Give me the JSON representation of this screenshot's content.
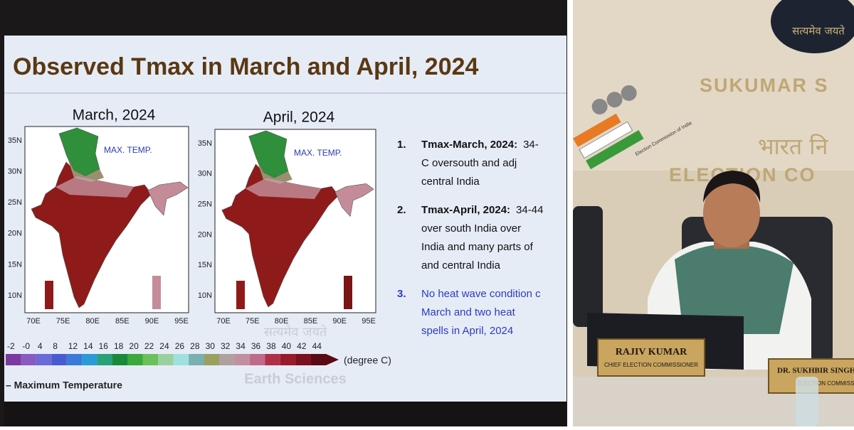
{
  "left_panel": {
    "title": "Observed Tmax in March and April, 2024",
    "maps": [
      {
        "label": "March, 2024",
        "legend": "MAX. TEMP."
      },
      {
        "label": "April, 2024",
        "legend": "MAX. TEMP."
      }
    ],
    "lat_labels": [
      "35N",
      "30N",
      "25N",
      "20N",
      "15N",
      "10N"
    ],
    "lon_labels": [
      "70E",
      "75E",
      "80E",
      "85E",
      "90E",
      "95E"
    ],
    "scale_labels": [
      "-2",
      "-0",
      "4",
      "8",
      "12",
      "14",
      "16",
      "18",
      "20",
      "22",
      "24",
      "26",
      "28",
      "30",
      "32",
      "34",
      "36",
      "38",
      "40",
      "42",
      "44"
    ],
    "scale_unit": "(degree C)",
    "caption": "– Maximum Temperature",
    "watermark_hindi": "सत्यमेव जयते",
    "watermark": "Earth Sciences",
    "points": [
      {
        "number": "1.",
        "heading": "Tmax-March, 2024:",
        "lines": [
          "34-",
          "C oversouth and adj",
          "central India"
        ]
      },
      {
        "number": "2.",
        "heading": "Tmax-April, 2024:",
        "lines": [
          "34-44",
          "over south India  over",
          "India and many parts of",
          "and central India"
        ]
      },
      {
        "number": "3.",
        "lines": [
          "No heat wave condition c",
          "March and two heat",
          "spells in April, 2024"
        ]
      }
    ]
  },
  "right_panel": {
    "emblem_text": "सत्यमेव जयते",
    "building_name": "SUKUMAR S",
    "hindi_sign": "भारत नि",
    "sign": "ELECTION CO",
    "logo_text": "Election Commission of India",
    "nameplates": [
      {
        "name": "RAJIV KUMAR",
        "title": "CHIEF ELECTION COMMISSIONER"
      },
      {
        "name": "DR. SUKHBIR SINGH S",
        "title": "ELECTION COMMISSIO"
      }
    ]
  }
}
